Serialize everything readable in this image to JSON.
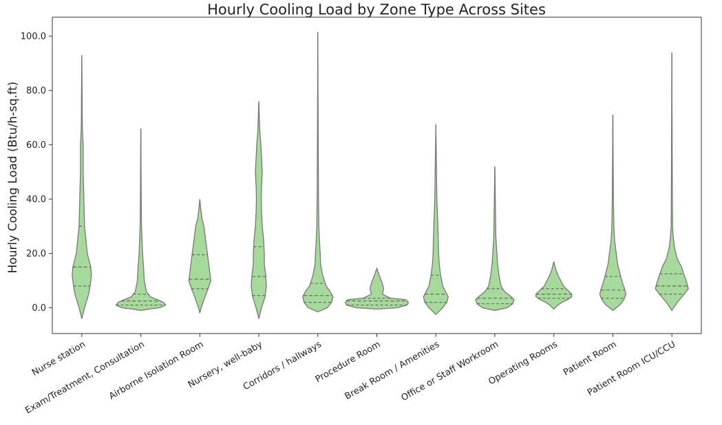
{
  "chart_data": {
    "type": "violin",
    "title": "Hourly Cooling Load by Zone Type Across Sites",
    "xlabel": "",
    "ylabel": "Hourly Cooling Load (Btu/h-sq.ft)",
    "ylim": [
      -9.5,
      107
    ],
    "yticks": [
      "0.0",
      "20.0",
      "40.0",
      "60.0",
      "80.0",
      "100.0"
    ],
    "grid": false,
    "fill_color": "#a6d99b",
    "outline_color": "#777777",
    "categories": [
      "Nurse station",
      "Exam/Treatment, Consultation",
      "Airborne Isolation Room",
      "Nursery, well-baby",
      "Corridors / hallways",
      "Procedure Room",
      "Break Room / Amenities",
      "Office or Staff Workroom",
      "Operating Rooms",
      "Patient Room",
      "Patient Room ICU/CCU"
    ],
    "violins": [
      {
        "min": -4,
        "max": 93,
        "q1": 8,
        "median": 15,
        "q3": 30,
        "profile": [
          [
            -4,
            0
          ],
          [
            0,
            4
          ],
          [
            5,
            10
          ],
          [
            8,
            12
          ],
          [
            12,
            14
          ],
          [
            15,
            13
          ],
          [
            20,
            8
          ],
          [
            25,
            6
          ],
          [
            30,
            4
          ],
          [
            40,
            3
          ],
          [
            50,
            2
          ],
          [
            60,
            2
          ],
          [
            65,
            1
          ],
          [
            70,
            0.6
          ],
          [
            80,
            0.4
          ],
          [
            93,
            0
          ]
        ]
      },
      {
        "min": -1,
        "max": 66,
        "q1": 1,
        "median": 2.5,
        "q3": 5,
        "profile": [
          [
            -1,
            0
          ],
          [
            -0.5,
            12
          ],
          [
            0,
            28
          ],
          [
            1,
            36
          ],
          [
            2,
            33
          ],
          [
            3,
            24
          ],
          [
            4,
            14
          ],
          [
            6,
            8
          ],
          [
            10,
            5
          ],
          [
            15,
            4
          ],
          [
            20,
            2.5
          ],
          [
            30,
            1
          ],
          [
            40,
            0.6
          ],
          [
            66,
            0
          ]
        ]
      },
      {
        "min": -2,
        "max": 40,
        "q1": 7,
        "median": 10.5,
        "q3": 19.5,
        "profile": [
          [
            -2,
            0
          ],
          [
            0,
            2
          ],
          [
            3,
            6
          ],
          [
            7,
            12
          ],
          [
            10,
            16
          ],
          [
            14,
            14
          ],
          [
            18,
            12
          ],
          [
            22,
            10
          ],
          [
            26,
            8
          ],
          [
            30,
            6
          ],
          [
            33,
            3
          ],
          [
            36,
            1.5
          ],
          [
            40,
            0
          ]
        ]
      },
      {
        "min": -4,
        "max": 76,
        "q1": 4.5,
        "median": 11.5,
        "q3": 22.5,
        "profile": [
          [
            -4,
            0
          ],
          [
            0,
            4
          ],
          [
            4,
            9
          ],
          [
            8,
            11
          ],
          [
            12,
            10
          ],
          [
            16,
            8
          ],
          [
            20,
            8
          ],
          [
            25,
            7
          ],
          [
            30,
            5
          ],
          [
            35,
            4
          ],
          [
            40,
            3.5
          ],
          [
            45,
            4
          ],
          [
            50,
            5
          ],
          [
            55,
            4
          ],
          [
            60,
            3
          ],
          [
            65,
            1.5
          ],
          [
            70,
            0.8
          ],
          [
            76,
            0
          ]
        ]
      },
      {
        "min": -1.5,
        "max": 101.5,
        "q1": 2,
        "median": 4.5,
        "q3": 9,
        "profile": [
          [
            -1.5,
            0
          ],
          [
            0,
            14
          ],
          [
            2,
            20
          ],
          [
            4,
            22
          ],
          [
            6,
            18
          ],
          [
            8,
            12
          ],
          [
            12,
            7
          ],
          [
            16,
            4
          ],
          [
            20,
            3.5
          ],
          [
            24,
            2.5
          ],
          [
            30,
            1.5
          ],
          [
            40,
            1
          ],
          [
            60,
            0.6
          ],
          [
            101.5,
            0
          ]
        ]
      },
      {
        "min": 0,
        "max": 14.5,
        "q1": 1,
        "median": 2.5,
        "q3": 3.5,
        "profile": [
          [
            -0.5,
            0
          ],
          [
            0,
            30
          ],
          [
            1,
            44
          ],
          [
            2,
            46
          ],
          [
            3,
            42
          ],
          [
            3.5,
            20
          ],
          [
            5,
            8
          ],
          [
            7,
            10
          ],
          [
            9,
            8
          ],
          [
            11,
            5
          ],
          [
            13,
            2
          ],
          [
            14.5,
            0
          ]
        ]
      },
      {
        "min": -2.5,
        "max": 67.5,
        "q1": 2,
        "median": 5,
        "q3": 12,
        "profile": [
          [
            -2.5,
            0
          ],
          [
            0,
            10
          ],
          [
            2,
            16
          ],
          [
            4,
            18
          ],
          [
            6,
            14
          ],
          [
            8,
            10
          ],
          [
            12,
            7
          ],
          [
            16,
            5
          ],
          [
            20,
            4
          ],
          [
            25,
            3.5
          ],
          [
            30,
            3
          ],
          [
            40,
            1.5
          ],
          [
            50,
            1
          ],
          [
            67.5,
            0
          ]
        ]
      },
      {
        "min": -1,
        "max": 52,
        "q1": 1.5,
        "median": 3.5,
        "q3": 7,
        "profile": [
          [
            -1,
            0
          ],
          [
            0,
            18
          ],
          [
            1.5,
            26
          ],
          [
            3,
            28
          ],
          [
            4,
            24
          ],
          [
            6,
            14
          ],
          [
            8,
            9
          ],
          [
            12,
            6
          ],
          [
            16,
            4
          ],
          [
            20,
            3
          ],
          [
            26,
            1.5
          ],
          [
            35,
            1
          ],
          [
            52,
            0
          ]
        ]
      },
      {
        "min": -0.5,
        "max": 17,
        "q1": 3.5,
        "median": 5,
        "q3": 7,
        "profile": [
          [
            -0.5,
            0
          ],
          [
            1,
            6
          ],
          [
            2,
            12
          ],
          [
            3,
            20
          ],
          [
            4,
            26
          ],
          [
            5,
            26
          ],
          [
            6,
            22
          ],
          [
            7,
            18
          ],
          [
            8,
            14
          ],
          [
            10,
            10
          ],
          [
            12,
            6
          ],
          [
            14,
            3
          ],
          [
            17,
            0
          ]
        ]
      },
      {
        "min": -1,
        "max": 71,
        "q1": 3.5,
        "median": 6.5,
        "q3": 11.5,
        "profile": [
          [
            -1,
            0
          ],
          [
            1,
            10
          ],
          [
            3,
            16
          ],
          [
            5,
            19
          ],
          [
            7,
            17
          ],
          [
            10,
            13
          ],
          [
            13,
            10
          ],
          [
            16,
            7
          ],
          [
            20,
            5
          ],
          [
            25,
            2.5
          ],
          [
            30,
            1.5
          ],
          [
            40,
            0.8
          ],
          [
            71,
            0
          ]
        ]
      },
      {
        "min": -1,
        "max": 94,
        "q1": 5,
        "median": 8,
        "q3": 12.5,
        "profile": [
          [
            -1,
            0
          ],
          [
            2,
            8
          ],
          [
            5,
            18
          ],
          [
            7,
            24
          ],
          [
            9,
            22
          ],
          [
            12,
            18
          ],
          [
            15,
            14
          ],
          [
            18,
            8
          ],
          [
            22,
            4
          ],
          [
            26,
            2
          ],
          [
            30,
            1
          ],
          [
            50,
            0.6
          ],
          [
            94,
            0
          ]
        ]
      }
    ]
  }
}
